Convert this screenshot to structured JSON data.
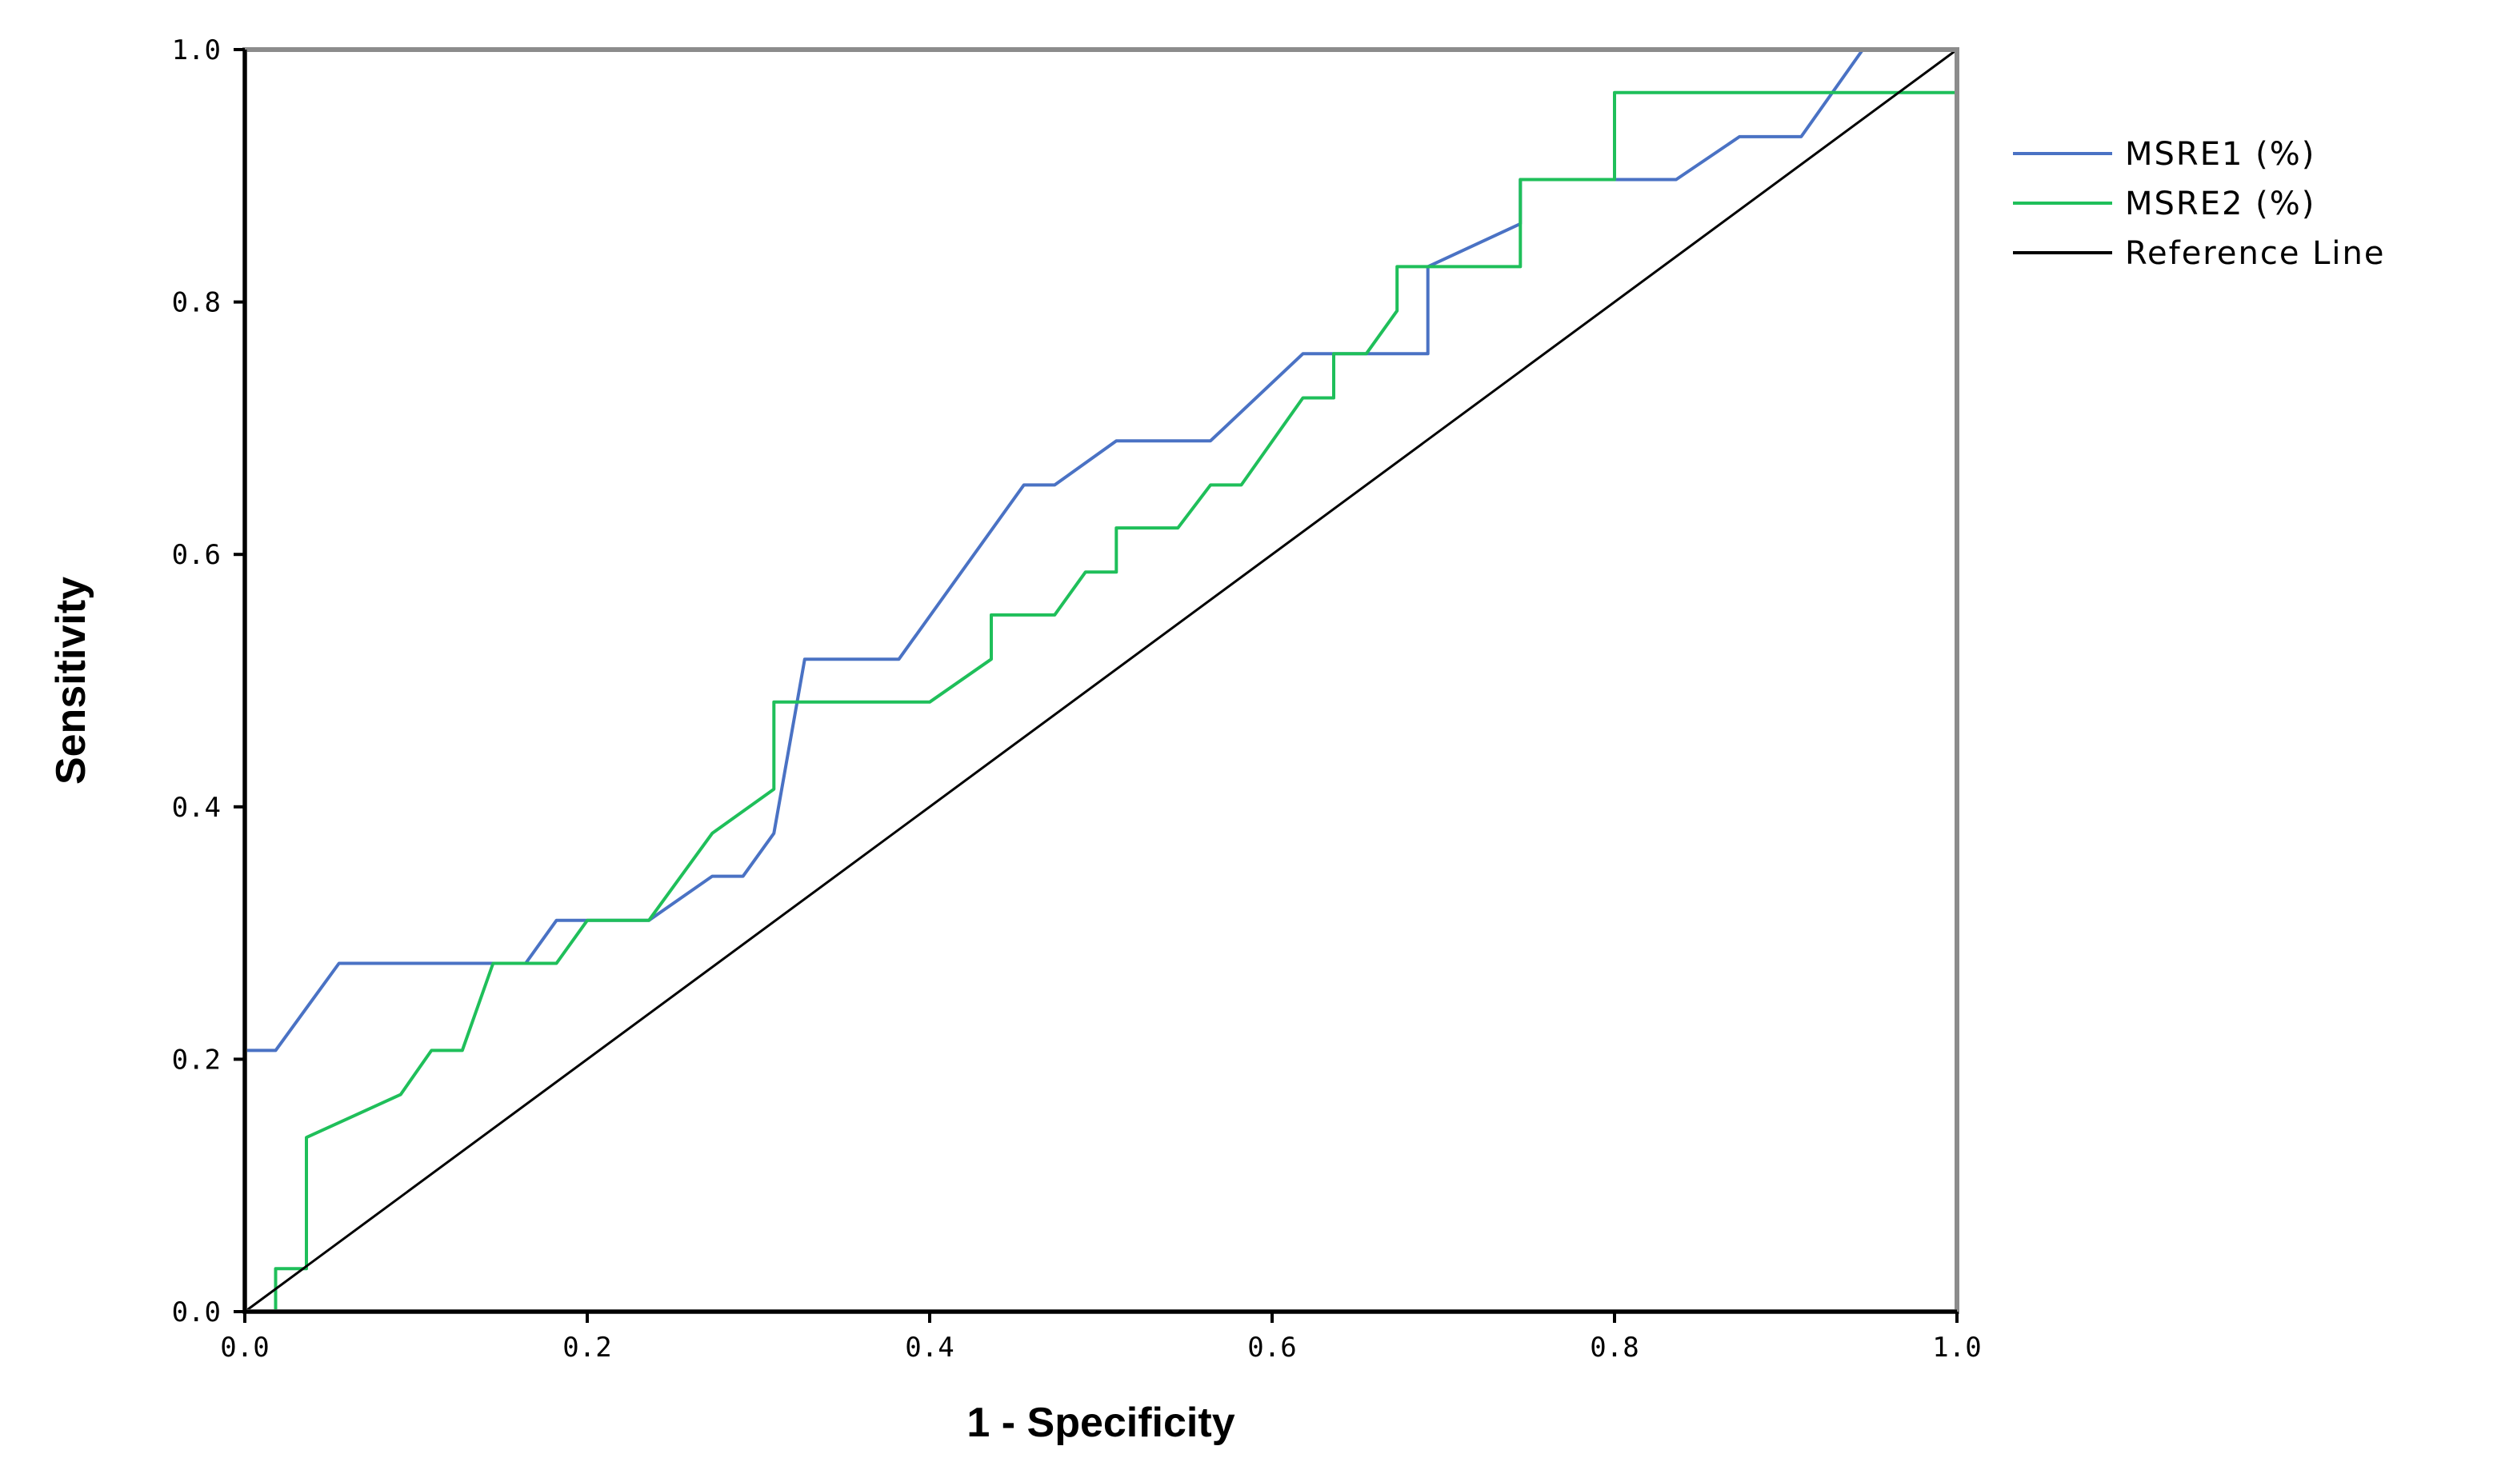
{
  "chart_data": {
    "type": "line",
    "title": "",
    "xlabel": "1 - Specificity",
    "ylabel": "Sensitivity",
    "xlim": [
      0,
      1
    ],
    "ylim": [
      0,
      1
    ],
    "xticks": [
      "0.0",
      "0.2",
      "0.4",
      "0.6",
      "0.8",
      "1.0"
    ],
    "yticks": [
      "0.0",
      "0.2",
      "0.4",
      "0.6",
      "0.8",
      "1.0"
    ],
    "grid": false,
    "legend_position": "right",
    "series": [
      {
        "name": "MSRE1 (%)",
        "color": "#4a72c4",
        "points": [
          [
            0,
            0
          ],
          [
            0,
            0.207
          ],
          [
            0.018,
            0.207
          ],
          [
            0.055,
            0.276
          ],
          [
            0.164,
            0.276
          ],
          [
            0.182,
            0.31
          ],
          [
            0.236,
            0.31
          ],
          [
            0.273,
            0.345
          ],
          [
            0.291,
            0.345
          ],
          [
            0.309,
            0.379
          ],
          [
            0.327,
            0.517
          ],
          [
            0.382,
            0.517
          ],
          [
            0.455,
            0.655
          ],
          [
            0.473,
            0.655
          ],
          [
            0.509,
            0.69
          ],
          [
            0.564,
            0.69
          ],
          [
            0.618,
            0.759
          ],
          [
            0.691,
            0.759
          ],
          [
            0.691,
            0.828
          ],
          [
            0.745,
            0.862
          ],
          [
            0.745,
            0.897
          ],
          [
            0.836,
            0.897
          ],
          [
            0.873,
            0.931
          ],
          [
            0.909,
            0.931
          ],
          [
            0.945,
            1
          ],
          [
            1,
            1
          ]
        ]
      },
      {
        "name": "MSRE2 (%)",
        "color": "#1fbf5a",
        "points": [
          [
            0,
            0
          ],
          [
            0.018,
            0
          ],
          [
            0.018,
            0.034
          ],
          [
            0.036,
            0.034
          ],
          [
            0.036,
            0.138
          ],
          [
            0.091,
            0.172
          ],
          [
            0.109,
            0.207
          ],
          [
            0.127,
            0.207
          ],
          [
            0.145,
            0.276
          ],
          [
            0.182,
            0.276
          ],
          [
            0.2,
            0.31
          ],
          [
            0.236,
            0.31
          ],
          [
            0.273,
            0.379
          ],
          [
            0.309,
            0.414
          ],
          [
            0.309,
            0.483
          ],
          [
            0.4,
            0.483
          ],
          [
            0.436,
            0.517
          ],
          [
            0.436,
            0.552
          ],
          [
            0.473,
            0.552
          ],
          [
            0.491,
            0.586
          ],
          [
            0.509,
            0.586
          ],
          [
            0.509,
            0.621
          ],
          [
            0.545,
            0.621
          ],
          [
            0.564,
            0.655
          ],
          [
            0.582,
            0.655
          ],
          [
            0.618,
            0.724
          ],
          [
            0.636,
            0.724
          ],
          [
            0.636,
            0.759
          ],
          [
            0.655,
            0.759
          ],
          [
            0.673,
            0.793
          ],
          [
            0.673,
            0.828
          ],
          [
            0.745,
            0.828
          ],
          [
            0.745,
            0.897
          ],
          [
            0.8,
            0.897
          ],
          [
            0.8,
            0.966
          ],
          [
            1,
            0.966
          ],
          [
            1,
            1
          ]
        ]
      },
      {
        "name": "Reference Line",
        "color": "#000000",
        "points": [
          [
            0,
            0
          ],
          [
            1,
            1
          ]
        ]
      }
    ]
  }
}
